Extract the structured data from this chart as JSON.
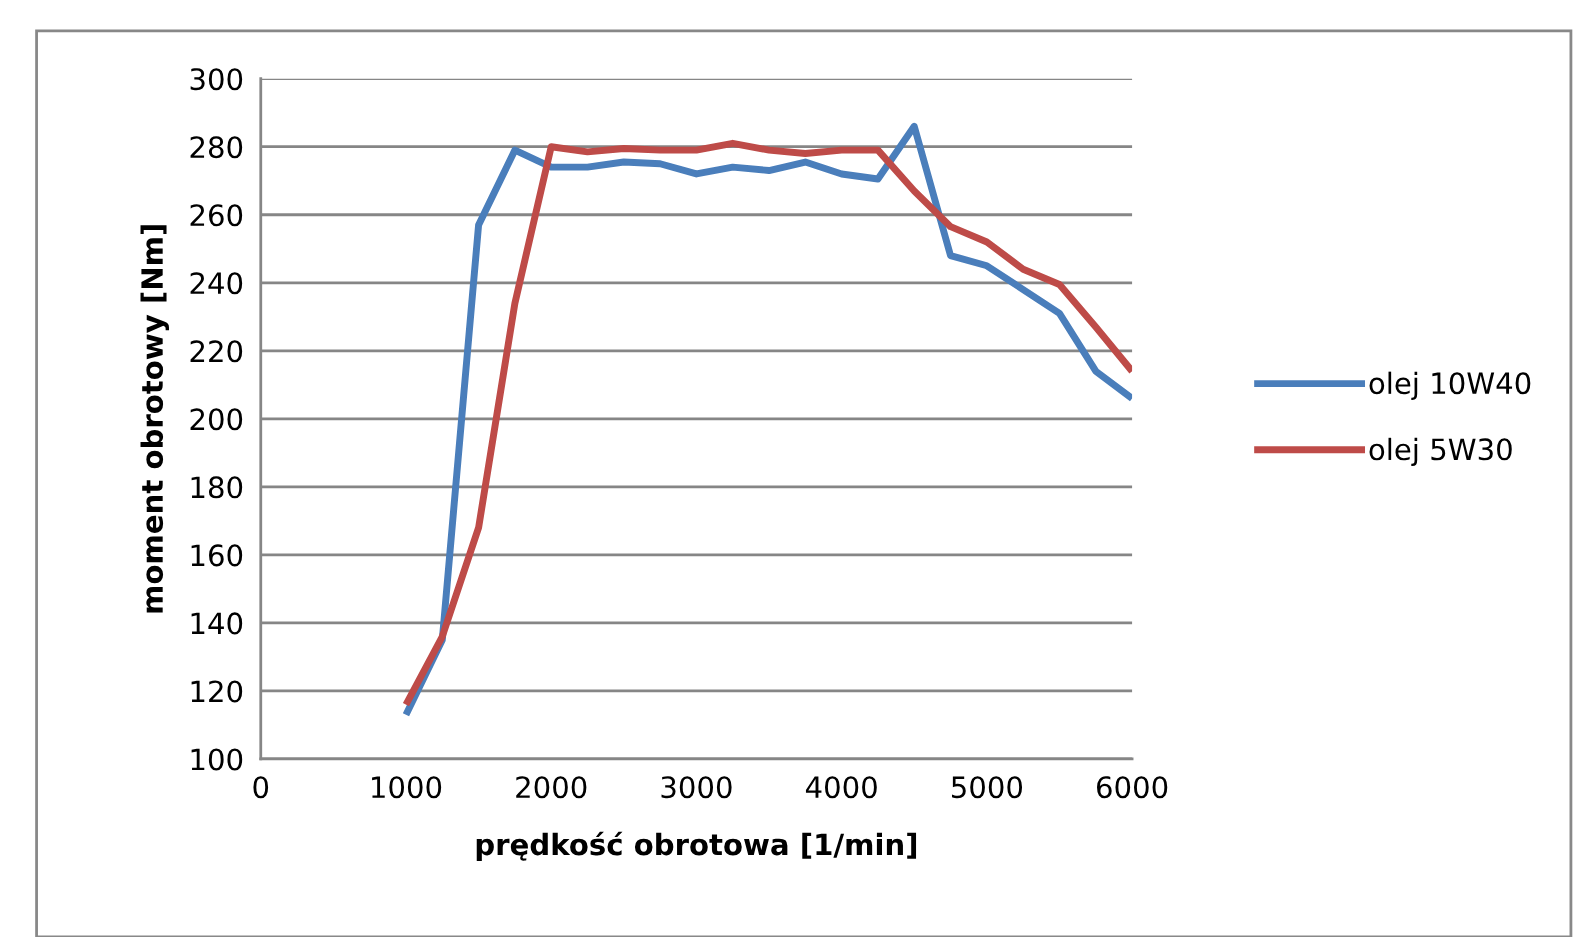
{
  "chart_data": {
    "type": "line",
    "xlabel": "prędkość obrotowa [1/min]",
    "ylabel": "moment obrotowy [Nm]",
    "x": [
      1000,
      1250,
      1500,
      1750,
      2000,
      2250,
      2500,
      2750,
      3000,
      3250,
      3500,
      3750,
      4000,
      4250,
      4500,
      4750,
      5000,
      5250,
      5500,
      5750,
      6000
    ],
    "series": [
      {
        "name": "olej 10W40",
        "color": "#4a7ebb",
        "values": [
          113,
          135,
          257,
          279,
          274,
          274,
          275.5,
          275,
          272,
          274,
          273,
          275.5,
          272,
          270.5,
          286,
          248,
          245,
          238,
          231,
          214,
          206
        ]
      },
      {
        "name": "olej 5W30",
        "color": "#be4b48",
        "values": [
          116,
          136,
          168,
          234,
          280,
          278.5,
          279.5,
          279,
          279,
          281,
          279,
          278,
          279,
          279,
          267,
          256.5,
          252,
          244,
          239.5,
          227,
          214
        ]
      }
    ],
    "xlim": [
      0,
      6000
    ],
    "xticks": [
      0,
      1000,
      2000,
      3000,
      4000,
      5000,
      6000
    ],
    "ylim": [
      100,
      300
    ],
    "yticks": [
      100,
      120,
      140,
      160,
      180,
      200,
      220,
      240,
      260,
      280,
      300
    ],
    "grid": "y",
    "legend": "right",
    "marker": "none",
    "line_style": "solid"
  }
}
